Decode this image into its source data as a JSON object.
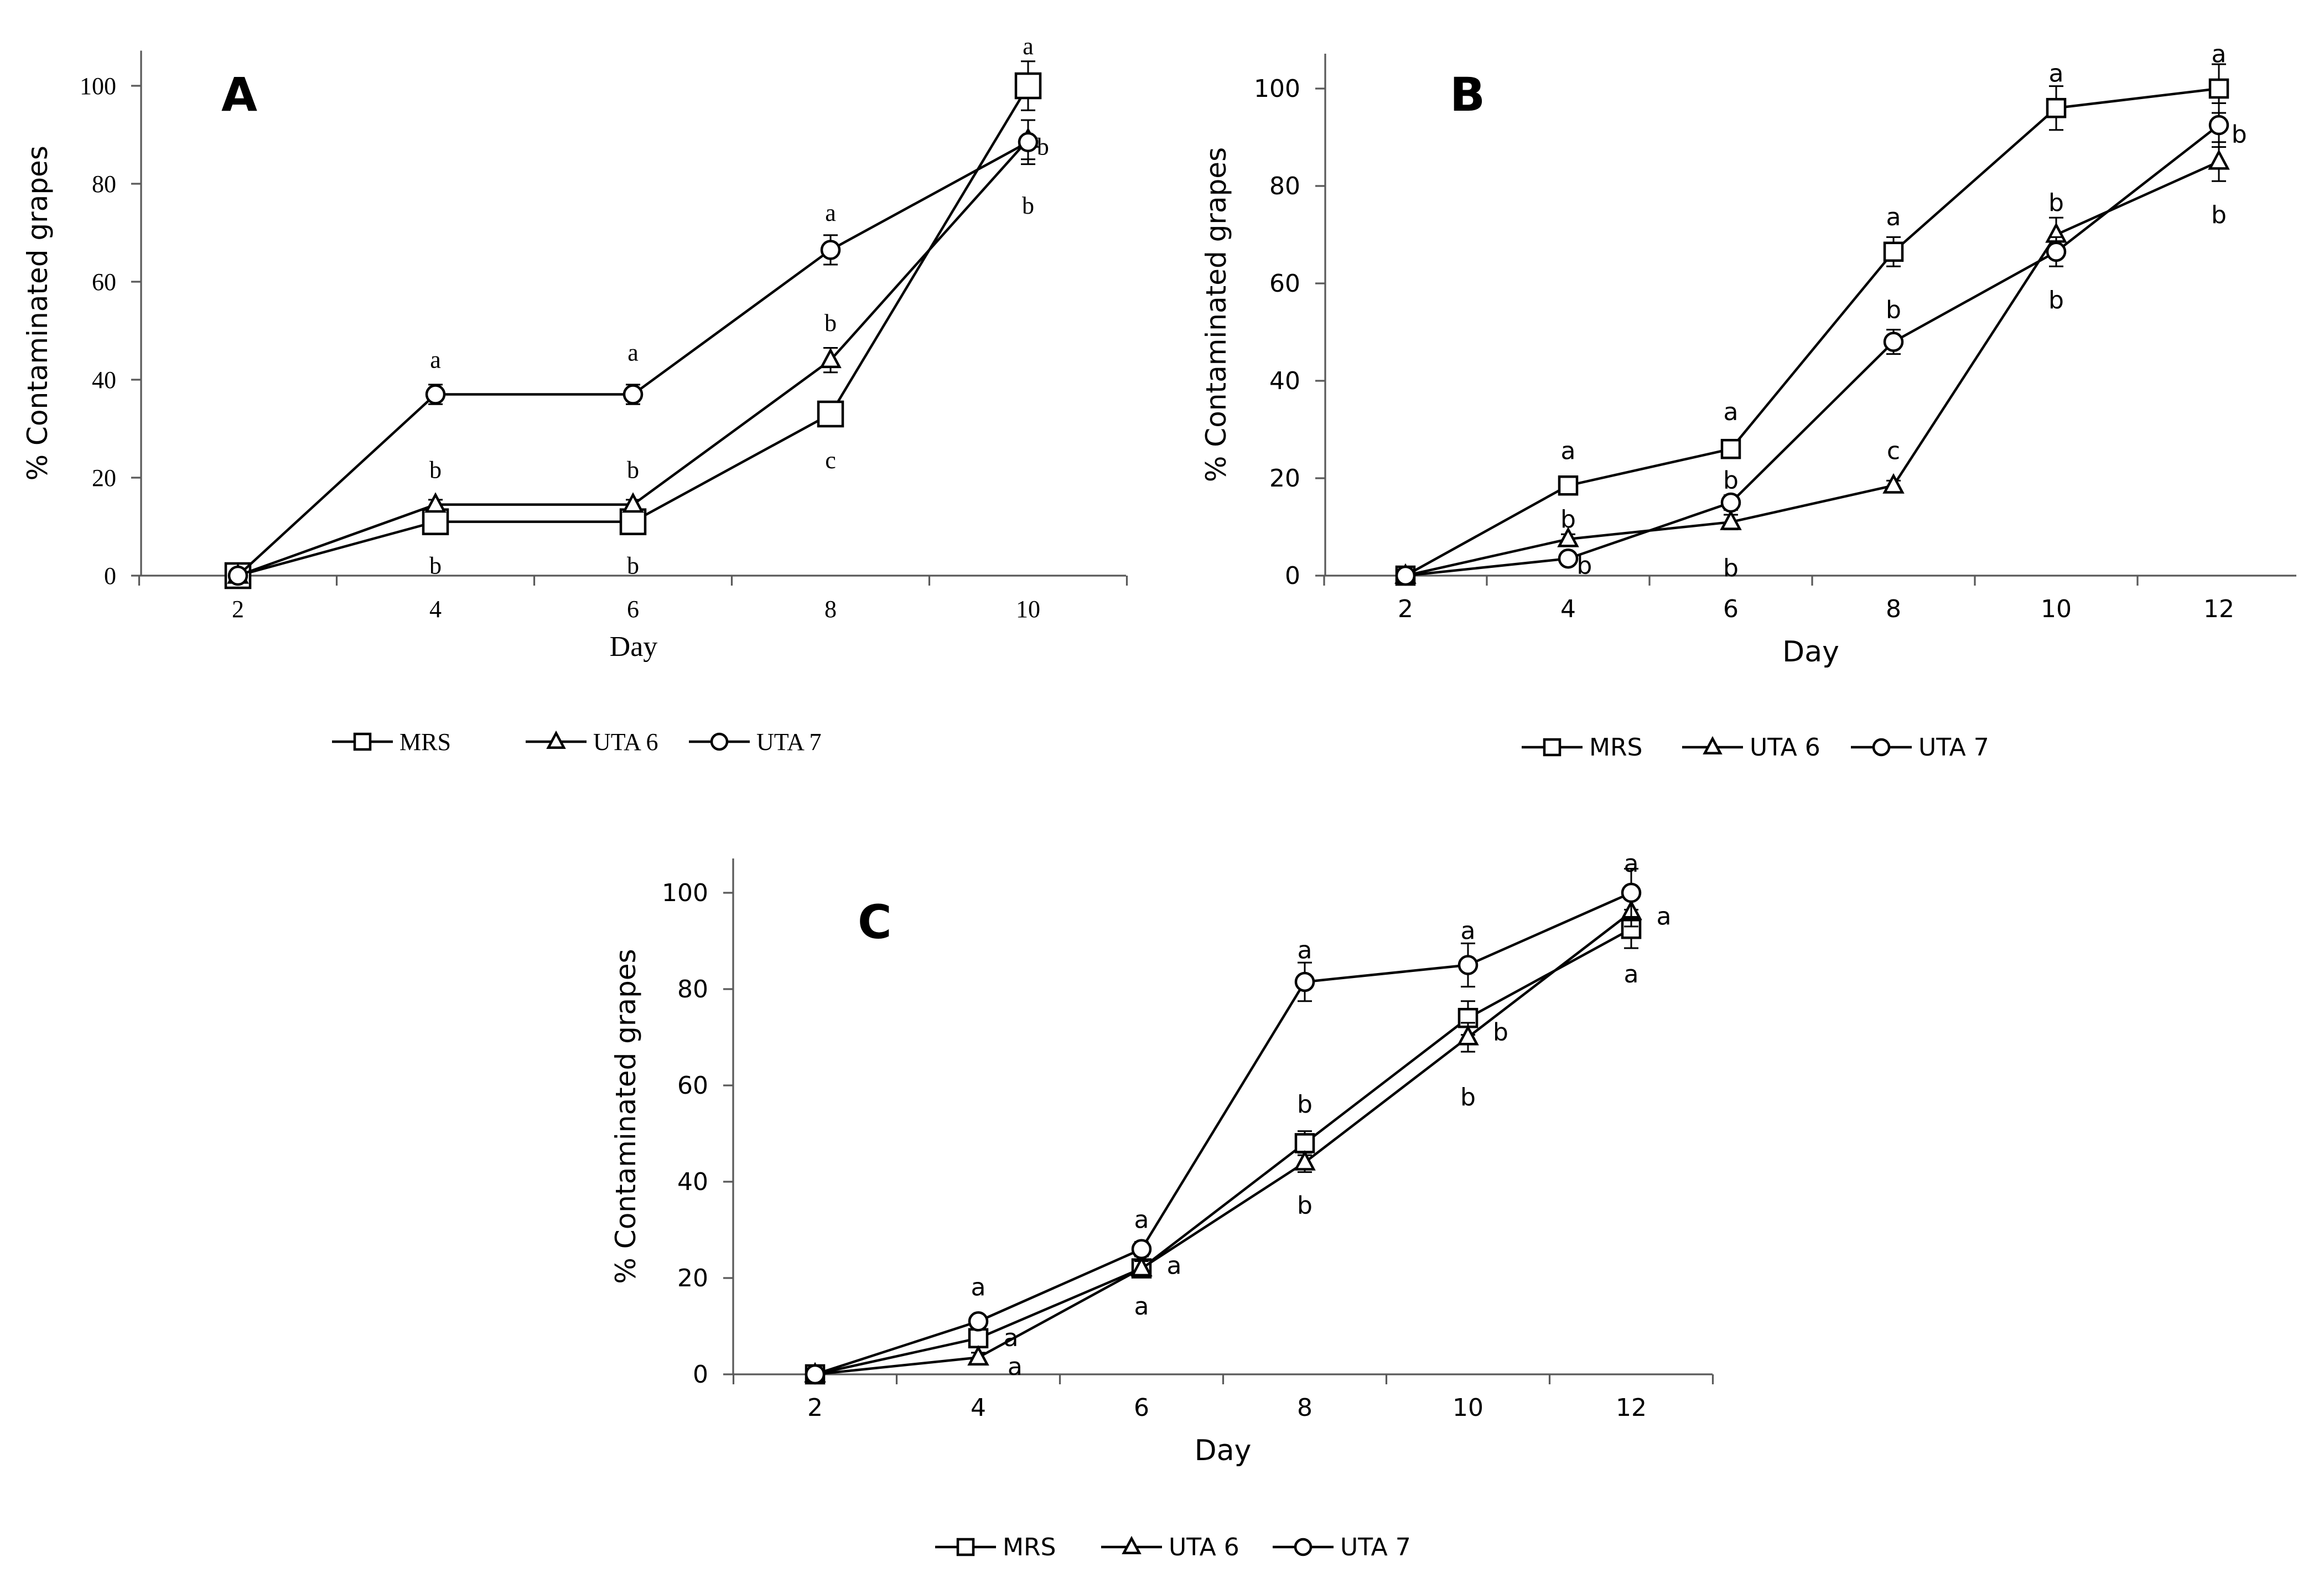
{
  "chart_data": [
    {
      "type": "line",
      "panel_label": "A",
      "xlabel": "Day",
      "ylabel": "% Contaminated grapes",
      "ylim": [
        0,
        110
      ],
      "x_ticks": [
        "2",
        "4",
        "6",
        "8",
        "10"
      ],
      "y_ticks": [
        "0",
        "20",
        "40",
        "60",
        "80",
        "100"
      ],
      "grid": false,
      "legend": "bottom",
      "series": [
        {
          "name": "MRS",
          "marker": "square",
          "x": [
            2,
            4,
            6,
            8,
            10
          ],
          "y": [
            0,
            11,
            11,
            33,
            100
          ],
          "err": [
            0,
            2,
            2,
            2,
            5
          ]
        },
        {
          "name": "UTA 6",
          "marker": "triangle",
          "x": [
            2,
            4,
            6,
            8,
            10
          ],
          "y": [
            0,
            14.5,
            14.5,
            44,
            89
          ],
          "err": [
            0,
            1,
            1,
            2.5,
            4
          ]
        },
        {
          "name": "UTA 7",
          "marker": "circle",
          "x": [
            2,
            4,
            6,
            8,
            10
          ],
          "y": [
            0,
            37,
            37,
            66.5,
            88.5
          ],
          "err": [
            0,
            2,
            2,
            3,
            4.5
          ]
        }
      ],
      "annotations": [
        {
          "text": "a",
          "x": 4,
          "y": 44
        },
        {
          "text": "b",
          "x": 4,
          "y": 21.5
        },
        {
          "text": "b",
          "x": 4,
          "y": 2
        },
        {
          "text": "a",
          "x": 6,
          "y": 45.5
        },
        {
          "text": "b",
          "x": 6,
          "y": 21.5
        },
        {
          "text": "b",
          "x": 6,
          "y": 2
        },
        {
          "text": "a",
          "x": 8,
          "y": 74
        },
        {
          "text": "b",
          "x": 8,
          "y": 51.5
        },
        {
          "text": "c",
          "x": 8,
          "y": 23.5
        },
        {
          "text": "a",
          "x": 10,
          "y": 108
        },
        {
          "text": "b",
          "x": 10.15,
          "y": 87.5
        },
        {
          "text": "b",
          "x": 10,
          "y": 75.5
        }
      ]
    },
    {
      "type": "line",
      "panel_label": "B",
      "xlabel": "Day",
      "ylabel": "% Contaminated grapes",
      "ylim": [
        0,
        110
      ],
      "x_ticks": [
        "2",
        "4",
        "6",
        "8",
        "10",
        "12"
      ],
      "y_ticks": [
        "0",
        "20",
        "40",
        "60",
        "80",
        "100"
      ],
      "grid": false,
      "legend": "bottom",
      "series": [
        {
          "name": "MRS",
          "marker": "square",
          "x": [
            2,
            4,
            6,
            8,
            10,
            12
          ],
          "y": [
            0,
            18.5,
            26,
            66.5,
            96,
            100
          ],
          "err": [
            0,
            1,
            1,
            3,
            4.5,
            5
          ]
        },
        {
          "name": "UTA 6",
          "marker": "triangle",
          "x": [
            2,
            4,
            6,
            8,
            10,
            12
          ],
          "y": [
            0,
            7.5,
            11,
            18.5,
            70,
            85
          ],
          "err": [
            0,
            1,
            1.5,
            1,
            3.5,
            4
          ]
        },
        {
          "name": "UTA 7",
          "marker": "circle",
          "x": [
            2,
            4,
            6,
            8,
            10,
            12
          ],
          "y": [
            0,
            3.5,
            15,
            48,
            66.5,
            92.5
          ],
          "err": [
            0,
            1,
            1.5,
            2.5,
            3,
            4.5
          ]
        }
      ],
      "annotations": [
        {
          "text": "a",
          "x": 4,
          "y": 25.5
        },
        {
          "text": "b",
          "x": 4,
          "y": 11.5
        },
        {
          "text": "b",
          "x": 4.2,
          "y": 2
        },
        {
          "text": "a",
          "x": 6,
          "y": 33.5
        },
        {
          "text": "b",
          "x": 6,
          "y": 19.5
        },
        {
          "text": "b",
          "x": 6,
          "y": 1.5
        },
        {
          "text": "a",
          "x": 8,
          "y": 73.5
        },
        {
          "text": "b",
          "x": 8,
          "y": 54.5
        },
        {
          "text": "c",
          "x": 8,
          "y": 25.5
        },
        {
          "text": "a",
          "x": 10,
          "y": 103
        },
        {
          "text": "b",
          "x": 10,
          "y": 76.5
        },
        {
          "text": "b",
          "x": 10,
          "y": 56.5
        },
        {
          "text": "a",
          "x": 12,
          "y": 107
        },
        {
          "text": "b",
          "x": 12.25,
          "y": 90.5
        },
        {
          "text": "b",
          "x": 12,
          "y": 74
        }
      ]
    },
    {
      "type": "line",
      "panel_label": "C",
      "xlabel": "Day",
      "ylabel": "% Contaminated grapes",
      "ylim": [
        0,
        110
      ],
      "x_ticks": [
        "2",
        "4",
        "6",
        "8",
        "10",
        "12"
      ],
      "y_ticks": [
        "0",
        "20",
        "40",
        "60",
        "80",
        "100"
      ],
      "grid": false,
      "legend": "bottom",
      "series": [
        {
          "name": "MRS",
          "marker": "square",
          "x": [
            2,
            4,
            6,
            8,
            10,
            12
          ],
          "y": [
            0,
            7.5,
            22,
            48,
            74,
            92.5
          ],
          "err": [
            0,
            1,
            1.5,
            2.5,
            3.5,
            4
          ]
        },
        {
          "name": "UTA 6",
          "marker": "triangle",
          "x": [
            2,
            4,
            6,
            8,
            10,
            12
          ],
          "y": [
            0,
            3.5,
            22,
            44,
            70,
            96
          ],
          "err": [
            0,
            1,
            1.5,
            2,
            3,
            3
          ]
        },
        {
          "name": "UTA 7",
          "marker": "circle",
          "x": [
            2,
            4,
            6,
            8,
            10,
            12
          ],
          "y": [
            0,
            11,
            26,
            81.5,
            85,
            100
          ],
          "err": [
            0,
            1,
            1.5,
            4,
            4.5,
            5
          ]
        }
      ],
      "annotations": [
        {
          "text": "a",
          "x": 4,
          "y": 18
        },
        {
          "text": "a",
          "x": 4.4,
          "y": 7.5
        },
        {
          "text": "a",
          "x": 4.45,
          "y": 1.5
        },
        {
          "text": "a",
          "x": 6,
          "y": 32
        },
        {
          "text": "a",
          "x": 6.4,
          "y": 22.5
        },
        {
          "text": "a",
          "x": 6,
          "y": 14
        },
        {
          "text": "a",
          "x": 8,
          "y": 88
        },
        {
          "text": "b",
          "x": 8,
          "y": 56
        },
        {
          "text": "b",
          "x": 8,
          "y": 35
        },
        {
          "text": "a",
          "x": 10,
          "y": 92
        },
        {
          "text": "b",
          "x": 10.4,
          "y": 71
        },
        {
          "text": "b",
          "x": 10,
          "y": 57.5
        },
        {
          "text": "a",
          "x": 12,
          "y": 106
        },
        {
          "text": "a",
          "x": 12.4,
          "y": 95
        },
        {
          "text": "a",
          "x": 12,
          "y": 83
        }
      ]
    }
  ]
}
